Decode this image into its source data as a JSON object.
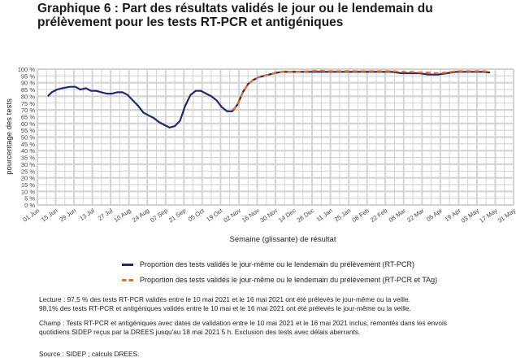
{
  "title_line1": "Graphique 6 : Part des résultats validés le jour ou le lendemain du",
  "title_line2": "prélèvement pour les tests RT-PCR et antigéniques",
  "legend": {
    "pcr": "Proportion des tests validés le jour-même ou le lendemain du prélèvement (RT-PCR)",
    "tag": "Proportion des tests validés le jour-même ou le lendemain du prélèvement (RT-PCR et TAg)"
  },
  "notes": {
    "lecture1": "Lecture : 97,5 % des tests RT-PCR validés entre le 10 mai 2021 et le 16 mai 2021 ont été prélevés le jour-même ou la veille.",
    "lecture2": "98,1% des tests RT-PCR et antigéniques validés entre le 10 mai et le 16 mai 2021 ont été prélevés le jour-même ou la veille.",
    "champ1": "Champ : Tests RT-PCR et antigéniques avec dates de validation entre le 10 mai 2021 et le 16 mai 2021 inclus, remontés dans les envois",
    "champ2": "quotidiens SIDEP reçus par la DREES jusqu'au 18 mai 2021 5 h. Exclusion des tests avec délais aberrants.",
    "source": "Source : SIDEP ; calculs DREES."
  },
  "colors": {
    "pcr": "#1f2b6b",
    "tag": "#f26b1d",
    "grid": "#d4d4d4"
  },
  "chart_data": {
    "type": "line",
    "xlabel": "Semaine (glissante) de résultat",
    "ylabel": "pourcentage des tests",
    "ylim": [
      0,
      100
    ],
    "y_ticks": [
      "0 %",
      "5 %",
      "10 %",
      "15 %",
      "20 %",
      "25 %",
      "30 %",
      "35 %",
      "40 %",
      "45 %",
      "50 %",
      "55 %",
      "60 %",
      "65 %",
      "70 %",
      "75 %",
      "80 %",
      "85 %",
      "90 %",
      "95 %",
      "100 %"
    ],
    "x_ticks": [
      "01 Jun",
      "15 Jun",
      "29 Jun",
      "13 Jul",
      "27 Jul",
      "10 Aug",
      "24 Aug",
      "07 Sep",
      "21 Sep",
      "05 Oct",
      "19 Oct",
      "02 Nov",
      "16 Nov",
      "30 Nov",
      "14 Dec",
      "28 Dec",
      "11 Jan",
      "25 Jan",
      "08 Feb",
      "22 Feb",
      "08 Mar",
      "22 Mar",
      "05 Apr",
      "19 Apr",
      "03 May",
      "17 May",
      "31 May"
    ],
    "grid": true,
    "legend_position": "bottom",
    "series": [
      {
        "key": "pcr",
        "name": "Proportion des tests validés le jour-même ou le lendemain du prélèvement (RT-PCR)",
        "x": [
          "2020-06-09",
          "2020-06-12",
          "2020-06-16",
          "2020-06-20",
          "2020-06-26",
          "2020-06-30",
          "2020-07-04",
          "2020-07-08",
          "2020-07-12",
          "2020-07-16",
          "2020-07-20",
          "2020-07-24",
          "2020-07-28",
          "2020-08-01",
          "2020-08-05",
          "2020-08-09",
          "2020-08-13",
          "2020-08-17",
          "2020-08-21",
          "2020-08-25",
          "2020-08-29",
          "2020-09-02",
          "2020-09-06",
          "2020-09-10",
          "2020-09-14",
          "2020-09-18",
          "2020-09-22",
          "2020-09-26",
          "2020-09-30",
          "2020-10-04",
          "2020-10-08",
          "2020-10-12",
          "2020-10-16",
          "2020-10-20",
          "2020-10-24",
          "2020-10-28",
          "2020-11-01",
          "2020-11-05",
          "2020-11-09",
          "2020-11-13",
          "2020-11-17",
          "2020-11-21",
          "2020-11-25",
          "2020-11-29",
          "2020-12-05",
          "2020-12-12",
          "2020-12-19",
          "2020-12-26",
          "2021-01-02",
          "2021-01-09",
          "2021-01-16",
          "2021-01-23",
          "2021-01-30",
          "2021-02-06",
          "2021-02-13",
          "2021-02-20",
          "2021-02-27",
          "2021-03-06",
          "2021-03-13",
          "2021-03-20",
          "2021-03-27",
          "2021-04-03",
          "2021-04-10",
          "2021-04-17",
          "2021-04-24",
          "2021-05-01",
          "2021-05-08",
          "2021-05-13"
        ],
        "y": [
          80,
          83,
          85,
          86,
          87,
          87,
          85,
          86,
          84,
          84,
          83,
          82,
          82,
          83,
          83,
          81,
          77,
          73,
          68,
          66,
          64,
          61,
          59,
          57,
          58,
          62,
          73,
          81,
          84,
          84,
          82,
          80,
          77,
          72,
          69,
          69,
          74,
          83,
          89,
          92,
          94,
          95,
          96,
          97,
          98,
          98,
          98,
          98,
          98,
          98,
          98,
          98,
          98,
          98,
          98,
          98,
          98,
          97,
          97,
          97,
          96,
          96,
          97,
          98,
          98,
          98,
          98,
          97.5
        ]
      },
      {
        "key": "tag",
        "name": "Proportion des tests validés le jour-même ou le lendemain du prélèvement (RT-PCR et TAg)",
        "x": [
          "2020-10-28",
          "2020-11-01",
          "2020-11-05",
          "2020-11-09",
          "2020-11-13",
          "2020-11-17",
          "2020-11-21",
          "2020-11-25",
          "2020-11-29",
          "2020-12-05",
          "2020-12-12",
          "2020-12-19",
          "2020-12-26",
          "2021-01-02",
          "2021-01-09",
          "2021-01-16",
          "2021-01-23",
          "2021-01-30",
          "2021-02-06",
          "2021-02-13",
          "2021-02-20",
          "2021-02-27",
          "2021-03-06",
          "2021-03-13",
          "2021-03-20",
          "2021-03-27",
          "2021-04-03",
          "2021-04-10",
          "2021-04-17",
          "2021-04-24",
          "2021-05-01",
          "2021-05-08",
          "2021-05-13"
        ],
        "y": [
          70,
          73,
          83,
          89,
          92,
          94,
          95,
          96,
          97,
          98,
          98,
          98,
          98.5,
          99,
          98.5,
          98.5,
          98.5,
          98.5,
          98.5,
          98.5,
          98.5,
          98.5,
          98,
          98,
          97.5,
          97.5,
          97,
          97.5,
          98.5,
          98.5,
          98.5,
          98.5,
          98.1
        ]
      }
    ]
  }
}
